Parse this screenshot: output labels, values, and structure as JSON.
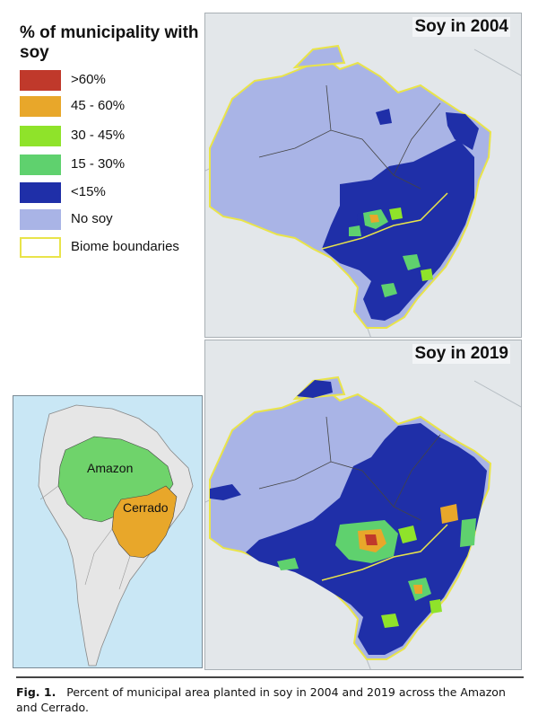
{
  "legend": {
    "title": "% of municipality with soy",
    "items": [
      {
        "label": ">60%",
        "color": "#c0392b"
      },
      {
        "label": "45 - 60%",
        "color": "#e8a72a"
      },
      {
        "label": "30 - 45%",
        "color": "#8fe32a"
      },
      {
        "label": "15 - 30%",
        "color": "#5fd16e"
      },
      {
        "label": "<15%",
        "color": "#1f2fa8"
      },
      {
        "label": "No soy",
        "color": "#a9b4e6"
      },
      {
        "label": "Biome boundaries",
        "color": "#ffffff",
        "border": "#e9e44a"
      }
    ]
  },
  "maps": [
    {
      "title": "Soy in 2004"
    },
    {
      "title": "Soy in 2019"
    }
  ],
  "inset": {
    "labels": {
      "amazon": "Amazon",
      "cerrado": "Cerrado"
    },
    "colors": {
      "amazon": "#6fd36b",
      "cerrado": "#e8a72a",
      "land": "#e6e6e6",
      "ocean": "#c9e7f5"
    }
  },
  "caption": {
    "label": "Fig. 1.",
    "text": "Percent of municipal area planted in soy in 2004 and 2019 across the Amazon and Cerrado."
  }
}
